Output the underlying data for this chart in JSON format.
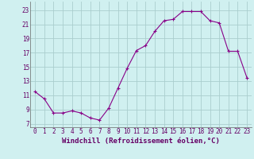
{
  "x": [
    0,
    1,
    2,
    3,
    4,
    5,
    6,
    7,
    8,
    9,
    10,
    11,
    12,
    13,
    14,
    15,
    16,
    17,
    18,
    19,
    20,
    21,
    22,
    23
  ],
  "y": [
    11.5,
    10.5,
    8.5,
    8.5,
    8.8,
    8.5,
    7.8,
    7.5,
    9.2,
    12.0,
    14.8,
    17.3,
    18.0,
    20.0,
    21.5,
    21.7,
    22.8,
    22.8,
    22.8,
    21.5,
    21.2,
    17.2,
    17.2,
    13.5
  ],
  "line_color": "#880088",
  "marker": "+",
  "bg_color": "#d0f0f0",
  "grid_color": "#aacece",
  "xlabel": "Windchill (Refroidissement éolien,°C)",
  "xlabel_fontsize": 6.5,
  "ylabel_ticks": [
    7,
    9,
    11,
    13,
    15,
    17,
    19,
    21,
    23
  ],
  "xlim": [
    -0.5,
    23.5
  ],
  "ylim": [
    6.5,
    24.2
  ],
  "xticks": [
    0,
    1,
    2,
    3,
    4,
    5,
    6,
    7,
    8,
    9,
    10,
    11,
    12,
    13,
    14,
    15,
    16,
    17,
    18,
    19,
    20,
    21,
    22,
    23
  ],
  "tick_fontsize": 5.5
}
